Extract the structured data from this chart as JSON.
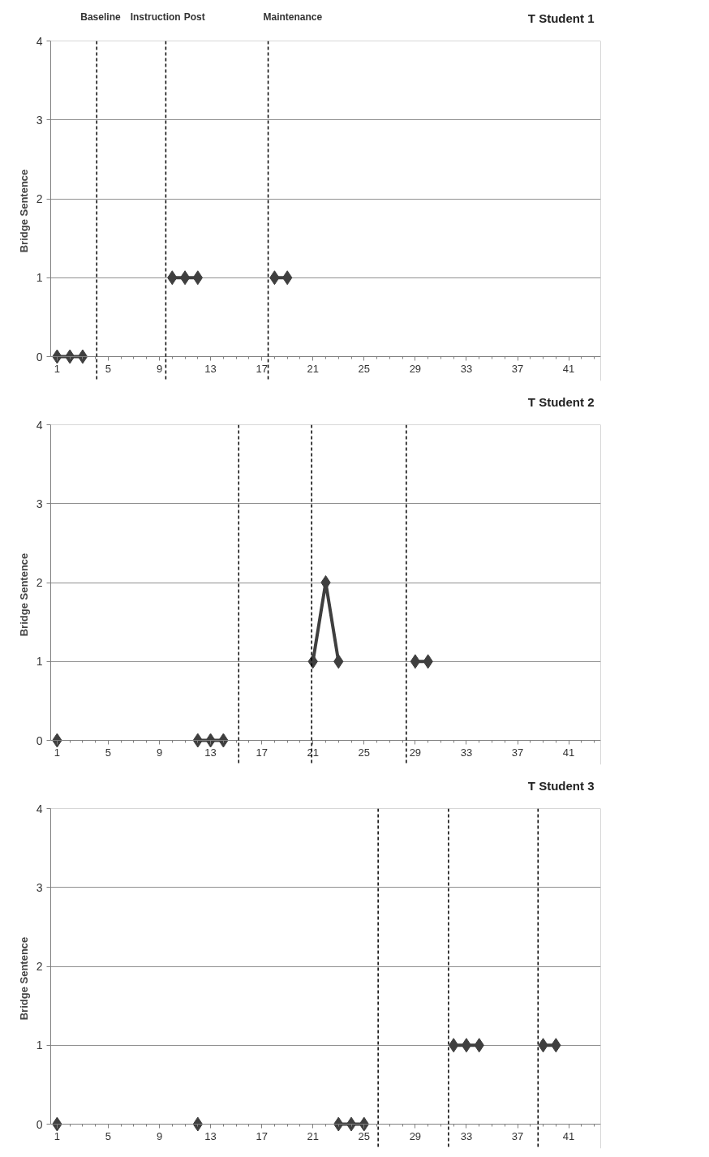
{
  "chart_data": [
    {
      "type": "line",
      "title": "T Student 1",
      "ylabel": "Bridge Sentence",
      "xlim": [
        0.5,
        43.5
      ],
      "ylim": [
        0,
        4
      ],
      "xticks": [
        1,
        5,
        9,
        13,
        17,
        21,
        25,
        29,
        33,
        37,
        41
      ],
      "yticks": [
        0,
        1,
        2,
        3,
        4
      ],
      "grid": "y",
      "marker": "diamond",
      "line_style": "solid",
      "annotations": [
        "Baseline",
        "Instruction",
        "Post",
        "Maintenance"
      ],
      "ref_lines": [
        {
          "axis": "x",
          "value": 4.1,
          "line_style": "dashed",
          "color": "#000000"
        },
        {
          "axis": "x",
          "value": 9.5,
          "line_style": "dashed",
          "color": "#000000"
        },
        {
          "axis": "x",
          "value": 17.5,
          "line_style": "dashed",
          "color": "#000000"
        }
      ],
      "series": [
        {
          "color": "#3f3f3f",
          "x": [
            1,
            2,
            3
          ],
          "values": [
            0,
            0,
            0
          ]
        },
        {
          "color": "#3f3f3f",
          "x": [
            10,
            11,
            12
          ],
          "values": [
            1,
            1,
            1
          ]
        },
        {
          "color": "#3f3f3f",
          "x": [
            18,
            19
          ],
          "values": [
            1,
            1
          ]
        }
      ]
    },
    {
      "type": "line",
      "title": "T Student 2",
      "ylabel": "Bridge Sentence",
      "xlim": [
        0.5,
        43.5
      ],
      "ylim": [
        0,
        4
      ],
      "xticks": [
        1,
        5,
        9,
        13,
        17,
        21,
        25,
        29,
        33,
        37,
        41
      ],
      "yticks": [
        0,
        1,
        2,
        3,
        4
      ],
      "grid": "y",
      "marker": "diamond",
      "line_style": "solid",
      "ref_lines": [
        {
          "axis": "x",
          "value": 15.2,
          "line_style": "dashed",
          "color": "#000000"
        },
        {
          "axis": "x",
          "value": 20.9,
          "line_style": "dashed",
          "color": "#000000"
        },
        {
          "axis": "x",
          "value": 28.3,
          "line_style": "dashed",
          "color": "#000000"
        }
      ],
      "series": [
        {
          "color": "#3f3f3f",
          "x": [
            1
          ],
          "values": [
            0
          ]
        },
        {
          "color": "#3f3f3f",
          "x": [
            12,
            13,
            14
          ],
          "values": [
            0,
            0,
            0
          ]
        },
        {
          "color": "#3f3f3f",
          "x": [
            21,
            22,
            23
          ],
          "values": [
            1,
            2,
            1
          ]
        },
        {
          "color": "#3f3f3f",
          "x": [
            29,
            30
          ],
          "values": [
            1,
            1
          ]
        }
      ]
    },
    {
      "type": "line",
      "title": "T Student 3",
      "ylabel": "Bridge Sentence",
      "xlim": [
        0.5,
        43.5
      ],
      "ylim": [
        0,
        4
      ],
      "xticks": [
        1,
        5,
        9,
        13,
        17,
        21,
        25,
        29,
        33,
        37,
        41
      ],
      "yticks": [
        0,
        1,
        2,
        3,
        4
      ],
      "grid": "y",
      "marker": "diamond",
      "line_style": "solid",
      "ref_lines": [
        {
          "axis": "x",
          "value": 26.1,
          "line_style": "dashed",
          "color": "#000000"
        },
        {
          "axis": "x",
          "value": 31.6,
          "line_style": "dashed",
          "color": "#000000"
        },
        {
          "axis": "x",
          "value": 38.6,
          "line_style": "dashed",
          "color": "#000000"
        }
      ],
      "series": [
        {
          "color": "#3f3f3f",
          "x": [
            1
          ],
          "values": [
            0
          ]
        },
        {
          "color": "#3f3f3f",
          "x": [
            12
          ],
          "values": [
            0
          ]
        },
        {
          "color": "#3f3f3f",
          "x": [
            23,
            24,
            25
          ],
          "values": [
            0,
            0,
            0
          ]
        },
        {
          "color": "#3f3f3f",
          "x": [
            32,
            33,
            34
          ],
          "values": [
            1,
            1,
            1
          ]
        },
        {
          "color": "#3f3f3f",
          "x": [
            39,
            40
          ],
          "values": [
            1,
            1
          ]
        }
      ]
    }
  ]
}
